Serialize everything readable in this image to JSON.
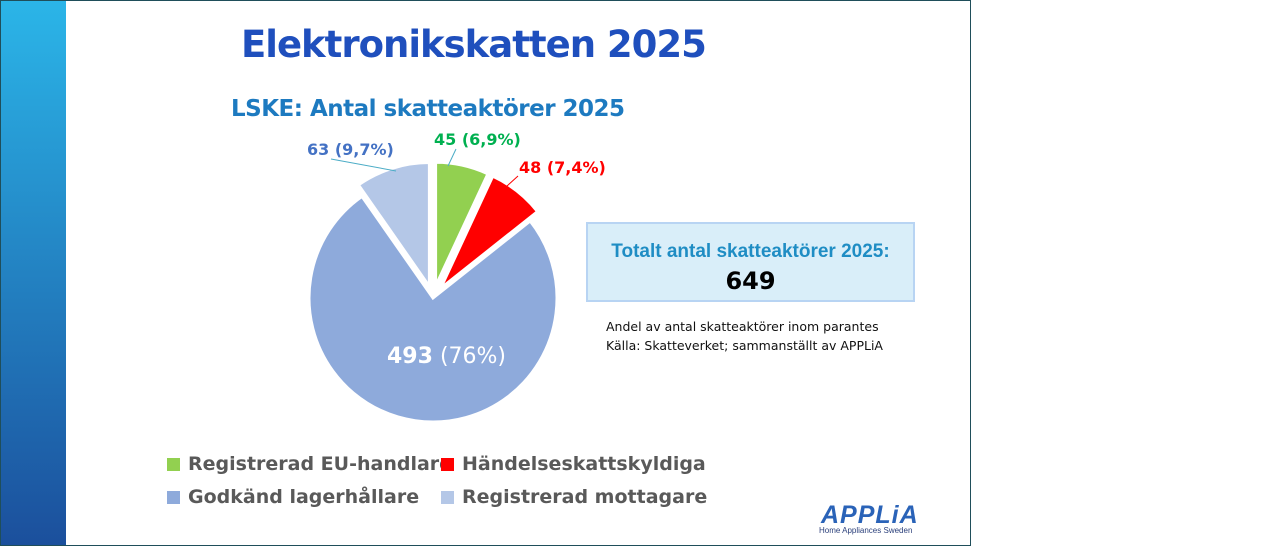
{
  "chart_data": {
    "type": "pie",
    "title": "Elektronikskatten 2025",
    "subtitle": "LSKE: Antal skatteaktörer 2025",
    "slices": [
      {
        "name": "Registrerad EU-handlare",
        "value": 45,
        "percent": 6.9,
        "label": "45 (6,9%)",
        "color": "#92d050",
        "exploded": true
      },
      {
        "name": "Händelseskattskyldiga",
        "value": 48,
        "percent": 7.4,
        "label": "48 (7,4%)",
        "color": "#ff0000",
        "exploded": true
      },
      {
        "name": "Godkänd lagerhållare",
        "value": 493,
        "percent": 76,
        "label_value": "493",
        "label_pct": "(76%)",
        "color": "#8eaadb",
        "exploded": false
      },
      {
        "name": "Registrerad mottagare",
        "value": 63,
        "percent": 9.7,
        "label": "63 (9,7%)",
        "color": "#b4c7e7",
        "exploded": true
      }
    ],
    "legend_position": "bottom"
  },
  "total": {
    "label": "Totalt antal skatteaktörer 2025:",
    "value": "649"
  },
  "notes": [
    "Andel av antal skatteaktörer inom parantes",
    "Källa: Skatteverket; sammanställt av APPLiA"
  ],
  "logo": {
    "name": "APPLiA",
    "tagline": "Home Appliances Sweden"
  }
}
